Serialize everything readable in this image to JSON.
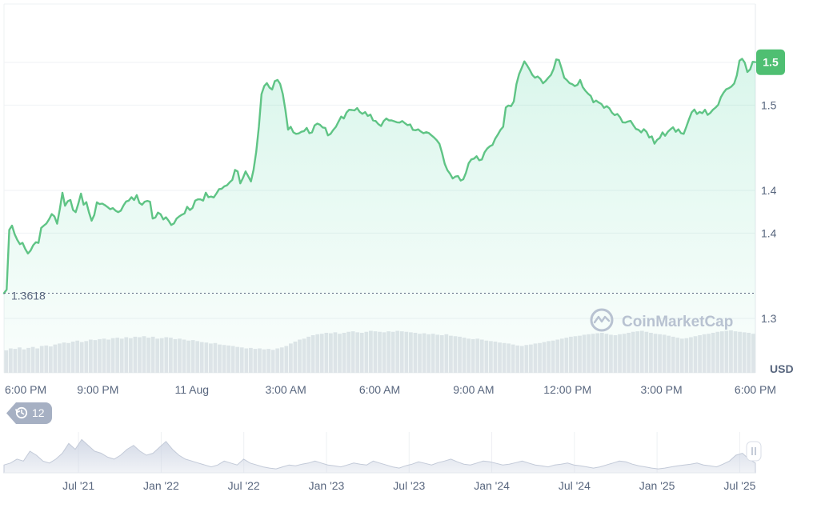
{
  "chart_data": {
    "type": "line",
    "currency_label": "USD",
    "watermark": "CoinMarketCap",
    "price_tag": "1.5",
    "open_label": "1.3618",
    "open_value": 1.3618,
    "events_badge": "12",
    "colors": {
      "line": "#5fc485",
      "area": "#16c784",
      "tag": "#4fbf72",
      "volume": "#e2e5ea",
      "badge": "#a6b0c3"
    },
    "y_ticks": [
      {
        "label": "1.5",
        "value": 1.47
      },
      {
        "label": "1.5",
        "value": 1.45
      },
      {
        "label": "1.4",
        "value": 1.41
      },
      {
        "label": "1.4",
        "value": 1.39
      },
      {
        "label": "1.3",
        "value": 1.35
      }
    ],
    "ylim": [
      1.35,
      1.473
    ],
    "x_labels": [
      "6:00 PM",
      "9:00 PM",
      "11 Aug",
      "3:00 AM",
      "6:00 AM",
      "9:00 AM",
      "12:00 PM",
      "3:00 PM",
      "6:00 PM"
    ],
    "x_label_pos": [
      0.0,
      0.125,
      0.25,
      0.375,
      0.5,
      0.625,
      0.75,
      0.875,
      1.0
    ],
    "series": [
      {
        "values": [
          1.3618,
          1.3635,
          1.3915,
          1.3935,
          1.3895,
          1.3868,
          1.3848,
          1.3854,
          1.3826,
          1.3804,
          1.3818,
          1.3843,
          1.3857,
          1.3854,
          1.3924,
          1.3935,
          1.3945,
          1.3965,
          1.3989,
          1.3978,
          1.3944,
          1.4011,
          1.4089,
          1.4028,
          1.4049,
          1.4055,
          1.4008,
          1.3998,
          1.4038,
          1.4085,
          1.4033,
          1.4045,
          1.3997,
          1.3958,
          1.3985,
          1.4044,
          1.4036,
          1.4038,
          1.4031,
          1.4022,
          1.4012,
          1.4017,
          1.4005,
          1.3998,
          1.4005,
          1.4029,
          1.4048,
          1.4052,
          1.4068,
          1.4055,
          1.4078,
          1.4042,
          1.4033,
          1.4047,
          1.4051,
          1.4047,
          1.3968,
          1.3973,
          1.3996,
          1.3988,
          1.3964,
          1.3974,
          1.3958,
          1.3938,
          1.3945,
          1.3968,
          1.3978,
          1.3986,
          1.3992,
          1.4023,
          1.4008,
          1.4018,
          1.4052,
          1.4058,
          1.4058,
          1.4052,
          1.4089,
          1.4068,
          1.4071,
          1.4067,
          1.4085,
          1.4106,
          1.4108,
          1.4119,
          1.4124,
          1.4138,
          1.4149,
          1.4196,
          1.4189,
          1.4133,
          1.4158,
          1.4189,
          1.4166,
          1.4142,
          1.4197,
          1.4281,
          1.4398,
          1.4551,
          1.4589,
          1.4603,
          1.4582,
          1.4573,
          1.4612,
          1.4618,
          1.4599,
          1.4552,
          1.4476,
          1.4385,
          1.4398,
          1.4372,
          1.4365,
          1.4367,
          1.4375,
          1.4378,
          1.4393,
          1.4368,
          1.4372,
          1.4405,
          1.4413,
          1.4408,
          1.4395,
          1.4393,
          1.4358,
          1.4365,
          1.4383,
          1.4398,
          1.4423,
          1.4446,
          1.4437,
          1.4465,
          1.4478,
          1.4477,
          1.4475,
          1.4486,
          1.4468,
          1.4459,
          1.4467,
          1.4449,
          1.4455,
          1.4428,
          1.4425,
          1.4411,
          1.4402,
          1.4425,
          1.4437,
          1.4428,
          1.4428,
          1.4424,
          1.4419,
          1.4418,
          1.4425,
          1.4415,
          1.4406,
          1.4409,
          1.4384,
          1.4382,
          1.4386,
          1.4376,
          1.4368,
          1.4373,
          1.4369,
          1.4358,
          1.4348,
          1.4335,
          1.4318,
          1.4275,
          1.4224,
          1.4195,
          1.4178,
          1.4156,
          1.4165,
          1.4167,
          1.4146,
          1.4152,
          1.4183,
          1.4227,
          1.4245,
          1.4249,
          1.426,
          1.4241,
          1.4245,
          1.4279,
          1.4296,
          1.4307,
          1.4313,
          1.4342,
          1.4362,
          1.4384,
          1.4398,
          1.4489,
          1.4498,
          1.4495,
          1.4517,
          1.4598,
          1.4645,
          1.4674,
          1.4705,
          1.4686,
          1.4665,
          1.4641,
          1.4628,
          1.4634,
          1.4623,
          1.4602,
          1.4613,
          1.4628,
          1.4641,
          1.4669,
          1.4714,
          1.4711,
          1.4672,
          1.4628,
          1.4617,
          1.4603,
          1.4598,
          1.4589,
          1.4595,
          1.4618,
          1.4584,
          1.4567,
          1.4553,
          1.4543,
          1.4513,
          1.4521,
          1.4512,
          1.4505,
          1.4487,
          1.4495,
          1.4485,
          1.4464,
          1.4453,
          1.4458,
          1.4443,
          1.4419,
          1.4418,
          1.4423,
          1.4426,
          1.4406,
          1.4388,
          1.4384,
          1.4372,
          1.4387,
          1.4374,
          1.4348,
          1.4353,
          1.4319,
          1.4337,
          1.4346,
          1.4372,
          1.4356,
          1.4374,
          1.4386,
          1.4396,
          1.4375,
          1.4386,
          1.4368,
          1.4365,
          1.4398,
          1.4433,
          1.4466,
          1.4479,
          1.4458,
          1.4468,
          1.4462,
          1.4478,
          1.4454,
          1.4463,
          1.4478,
          1.4488,
          1.4501,
          1.4537,
          1.4558,
          1.4574,
          1.4579,
          1.4587,
          1.4601,
          1.4639,
          1.4708,
          1.4717,
          1.4699,
          1.4655,
          1.4667,
          1.4703,
          1.4701
        ]
      },
      {
        "name": "volume",
        "values": [
          0.46,
          0.5,
          0.49,
          0.52,
          0.48,
          0.51,
          0.53,
          0.5,
          0.55,
          0.56,
          0.54,
          0.58,
          0.6,
          0.62,
          0.61,
          0.64,
          0.66,
          0.63,
          0.65,
          0.68,
          0.67,
          0.69,
          0.7,
          0.68,
          0.71,
          0.72,
          0.7,
          0.73,
          0.71,
          0.74,
          0.73,
          0.75,
          0.72,
          0.74,
          0.7,
          0.71,
          0.73,
          0.72,
          0.69,
          0.7,
          0.68,
          0.66,
          0.67,
          0.65,
          0.63,
          0.62,
          0.6,
          0.61,
          0.58,
          0.57,
          0.56,
          0.55,
          0.53,
          0.52,
          0.5,
          0.51,
          0.49,
          0.5,
          0.48,
          0.49,
          0.47,
          0.5,
          0.52,
          0.55,
          0.6,
          0.64,
          0.68,
          0.7,
          0.74,
          0.77,
          0.79,
          0.8,
          0.82,
          0.81,
          0.83,
          0.8,
          0.82,
          0.84,
          0.85,
          0.83,
          0.82,
          0.84,
          0.86,
          0.85,
          0.84,
          0.83,
          0.85,
          0.84,
          0.86,
          0.85,
          0.84,
          0.83,
          0.82,
          0.8,
          0.81,
          0.79,
          0.8,
          0.78,
          0.77,
          0.79,
          0.76,
          0.75,
          0.74,
          0.72,
          0.7,
          0.69,
          0.7,
          0.68,
          0.66,
          0.65,
          0.64,
          0.62,
          0.61,
          0.6,
          0.58,
          0.56,
          0.55,
          0.57,
          0.58,
          0.6,
          0.61,
          0.63,
          0.65,
          0.66,
          0.68,
          0.7,
          0.72,
          0.74,
          0.75,
          0.76,
          0.78,
          0.79,
          0.8,
          0.81,
          0.82,
          0.8,
          0.78,
          0.77,
          0.79,
          0.8,
          0.82,
          0.84,
          0.85,
          0.86,
          0.84,
          0.82,
          0.8,
          0.79,
          0.78,
          0.76,
          0.74,
          0.72,
          0.7,
          0.71,
          0.73,
          0.75,
          0.77,
          0.79,
          0.8,
          0.82,
          0.84,
          0.85,
          0.86,
          0.87,
          0.85,
          0.84,
          0.83,
          0.82,
          0.8
        ]
      }
    ],
    "navigator": {
      "x_labels": [
        "Jul '21",
        "Jan '22",
        "Jul '22",
        "Jan '23",
        "Jul '23",
        "Jan '24",
        "Jul '24",
        "Jan '25",
        "Jul '25"
      ],
      "x_label_pos": [
        0.113,
        0.223,
        0.333,
        0.443,
        0.553,
        0.663,
        0.773,
        0.883,
        0.993
      ],
      "values": [
        0.2,
        0.25,
        0.35,
        0.3,
        0.55,
        0.45,
        0.3,
        0.25,
        0.35,
        0.5,
        0.75,
        0.6,
        0.85,
        0.7,
        0.55,
        0.5,
        0.4,
        0.35,
        0.45,
        0.6,
        0.7,
        0.55,
        0.45,
        0.5,
        0.65,
        0.8,
        0.6,
        0.45,
        0.35,
        0.3,
        0.25,
        0.2,
        0.15,
        0.2,
        0.3,
        0.25,
        0.2,
        0.35,
        0.25,
        0.2,
        0.15,
        0.12,
        0.1,
        0.15,
        0.2,
        0.18,
        0.22,
        0.25,
        0.3,
        0.25,
        0.2,
        0.18,
        0.15,
        0.2,
        0.25,
        0.22,
        0.2,
        0.3,
        0.25,
        0.2,
        0.15,
        0.12,
        0.18,
        0.22,
        0.28,
        0.24,
        0.2,
        0.26,
        0.3,
        0.35,
        0.28,
        0.22,
        0.2,
        0.25,
        0.3,
        0.28,
        0.24,
        0.2,
        0.22,
        0.26,
        0.3,
        0.25,
        0.2,
        0.18,
        0.15,
        0.2,
        0.22,
        0.25,
        0.2,
        0.18,
        0.15,
        0.12,
        0.15,
        0.2,
        0.25,
        0.3,
        0.28,
        0.22,
        0.18,
        0.15,
        0.12,
        0.1,
        0.12,
        0.15,
        0.18,
        0.2,
        0.22,
        0.25,
        0.2,
        0.18,
        0.15,
        0.22,
        0.3,
        0.45,
        0.5,
        0.35,
        0.25
      ]
    }
  }
}
